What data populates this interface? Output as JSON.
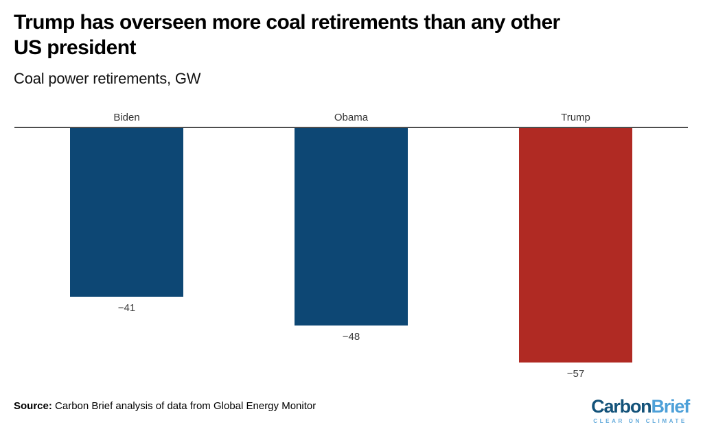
{
  "header": {
    "title_line1": "Trump has overseen more coal retirements than any other",
    "title_line2": "US president",
    "subtitle": "Coal power retirements, GW"
  },
  "chart_data": {
    "type": "bar",
    "title": "Trump has overseen more coal retirements than any other US president",
    "subtitle": "Coal power retirements, GW",
    "categories": [
      "Biden",
      "Obama",
      "Trump"
    ],
    "values": [
      -41,
      -48,
      -57
    ],
    "value_labels": [
      "−41",
      "−48",
      "−57"
    ],
    "bar_colors": [
      "#0d4774",
      "#0d4774",
      "#b02a23"
    ],
    "xlabel": "",
    "ylabel": "Coal power retirements, GW",
    "ylim": [
      -60,
      0
    ],
    "baseline": 0,
    "grid": false,
    "legend": "none",
    "orientation": "vertical-negative",
    "axis_line_color": "#4d4d4d"
  },
  "footer": {
    "source_label": "Source:",
    "source_text": "Carbon Brief analysis of data from Global Energy Monitor"
  },
  "logo": {
    "part1": "Carbon",
    "part2": "Brief",
    "tagline": "CLEAR ON CLIMATE",
    "part1_color": "#14537a",
    "part2_color": "#4da0d8",
    "tagline_color": "#62aadb"
  }
}
